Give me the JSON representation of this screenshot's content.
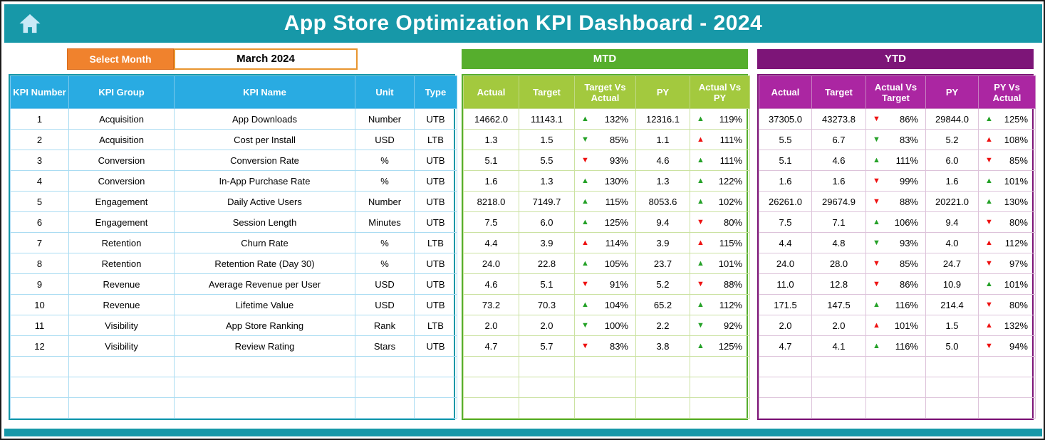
{
  "title": "App Store Optimization KPI Dashboard - 2024",
  "controls": {
    "select_month_label": "Select Month",
    "selected_month": "March 2024"
  },
  "kpi_table": {
    "headers": [
      "KPI Number",
      "KPI Group",
      "KPI Name",
      "Unit",
      "Type"
    ]
  },
  "mtd": {
    "title": "MTD",
    "headers": [
      "Actual",
      "Target",
      "Target Vs Actual",
      "PY",
      "Actual Vs PY"
    ]
  },
  "ytd": {
    "title": "YTD",
    "headers": [
      "Actual",
      "Target",
      "Actual Vs Target",
      "PY",
      "PY Vs Actual"
    ]
  },
  "rows": [
    {
      "kpi_number": "1",
      "group": "Acquisition",
      "name": "App Downloads",
      "unit": "Number",
      "type": "UTB",
      "mtd": {
        "actual": "14662.0",
        "target": "11143.1",
        "target_vs_actual": {
          "dir": "up",
          "good": true,
          "pct": "132%"
        },
        "py": "12316.1",
        "actual_vs_py": {
          "dir": "up",
          "good": true,
          "pct": "119%"
        }
      },
      "ytd": {
        "actual": "37305.0",
        "target": "43273.8",
        "actual_vs_target": {
          "dir": "down",
          "good": false,
          "pct": "86%"
        },
        "py": "29844.0",
        "py_vs_actual": {
          "dir": "up",
          "good": true,
          "pct": "125%"
        }
      }
    },
    {
      "kpi_number": "2",
      "group": "Acquisition",
      "name": "Cost per Install",
      "unit": "USD",
      "type": "LTB",
      "mtd": {
        "actual": "1.3",
        "target": "1.5",
        "target_vs_actual": {
          "dir": "down",
          "good": true,
          "pct": "85%"
        },
        "py": "1.1",
        "actual_vs_py": {
          "dir": "up",
          "good": false,
          "pct": "111%"
        }
      },
      "ytd": {
        "actual": "5.5",
        "target": "6.7",
        "actual_vs_target": {
          "dir": "down",
          "good": true,
          "pct": "83%"
        },
        "py": "5.2",
        "py_vs_actual": {
          "dir": "up",
          "good": false,
          "pct": "108%"
        }
      }
    },
    {
      "kpi_number": "3",
      "group": "Conversion",
      "name": "Conversion Rate",
      "unit": "%",
      "type": "UTB",
      "mtd": {
        "actual": "5.1",
        "target": "5.5",
        "target_vs_actual": {
          "dir": "down",
          "good": false,
          "pct": "93%"
        },
        "py": "4.6",
        "actual_vs_py": {
          "dir": "up",
          "good": true,
          "pct": "111%"
        }
      },
      "ytd": {
        "actual": "5.1",
        "target": "4.6",
        "actual_vs_target": {
          "dir": "up",
          "good": true,
          "pct": "111%"
        },
        "py": "6.0",
        "py_vs_actual": {
          "dir": "down",
          "good": false,
          "pct": "85%"
        }
      }
    },
    {
      "kpi_number": "4",
      "group": "Conversion",
      "name": "In-App Purchase Rate",
      "unit": "%",
      "type": "UTB",
      "mtd": {
        "actual": "1.6",
        "target": "1.3",
        "target_vs_actual": {
          "dir": "up",
          "good": true,
          "pct": "130%"
        },
        "py": "1.3",
        "actual_vs_py": {
          "dir": "up",
          "good": true,
          "pct": "122%"
        }
      },
      "ytd": {
        "actual": "1.6",
        "target": "1.6",
        "actual_vs_target": {
          "dir": "down",
          "good": false,
          "pct": "99%"
        },
        "py": "1.6",
        "py_vs_actual": {
          "dir": "up",
          "good": true,
          "pct": "101%"
        }
      }
    },
    {
      "kpi_number": "5",
      "group": "Engagement",
      "name": "Daily Active Users",
      "unit": "Number",
      "type": "UTB",
      "mtd": {
        "actual": "8218.0",
        "target": "7149.7",
        "target_vs_actual": {
          "dir": "up",
          "good": true,
          "pct": "115%"
        },
        "py": "8053.6",
        "actual_vs_py": {
          "dir": "up",
          "good": true,
          "pct": "102%"
        }
      },
      "ytd": {
        "actual": "26261.0",
        "target": "29674.9",
        "actual_vs_target": {
          "dir": "down",
          "good": false,
          "pct": "88%"
        },
        "py": "20221.0",
        "py_vs_actual": {
          "dir": "up",
          "good": true,
          "pct": "130%"
        }
      }
    },
    {
      "kpi_number": "6",
      "group": "Engagement",
      "name": "Session Length",
      "unit": "Minutes",
      "type": "UTB",
      "mtd": {
        "actual": "7.5",
        "target": "6.0",
        "target_vs_actual": {
          "dir": "up",
          "good": true,
          "pct": "125%"
        },
        "py": "9.4",
        "actual_vs_py": {
          "dir": "down",
          "good": false,
          "pct": "80%"
        }
      },
      "ytd": {
        "actual": "7.5",
        "target": "7.1",
        "actual_vs_target": {
          "dir": "up",
          "good": true,
          "pct": "106%"
        },
        "py": "9.4",
        "py_vs_actual": {
          "dir": "down",
          "good": false,
          "pct": "80%"
        }
      }
    },
    {
      "kpi_number": "7",
      "group": "Retention",
      "name": "Churn Rate",
      "unit": "%",
      "type": "LTB",
      "mtd": {
        "actual": "4.4",
        "target": "3.9",
        "target_vs_actual": {
          "dir": "up",
          "good": false,
          "pct": "114%"
        },
        "py": "3.9",
        "actual_vs_py": {
          "dir": "up",
          "good": false,
          "pct": "115%"
        }
      },
      "ytd": {
        "actual": "4.4",
        "target": "4.8",
        "actual_vs_target": {
          "dir": "down",
          "good": true,
          "pct": "93%"
        },
        "py": "4.0",
        "py_vs_actual": {
          "dir": "up",
          "good": false,
          "pct": "112%"
        }
      }
    },
    {
      "kpi_number": "8",
      "group": "Retention",
      "name": "Retention Rate (Day 30)",
      "unit": "%",
      "type": "UTB",
      "mtd": {
        "actual": "24.0",
        "target": "22.8",
        "target_vs_actual": {
          "dir": "up",
          "good": true,
          "pct": "105%"
        },
        "py": "23.7",
        "actual_vs_py": {
          "dir": "up",
          "good": true,
          "pct": "101%"
        }
      },
      "ytd": {
        "actual": "24.0",
        "target": "28.0",
        "actual_vs_target": {
          "dir": "down",
          "good": false,
          "pct": "85%"
        },
        "py": "24.7",
        "py_vs_actual": {
          "dir": "down",
          "good": false,
          "pct": "97%"
        }
      }
    },
    {
      "kpi_number": "9",
      "group": "Revenue",
      "name": "Average Revenue per User",
      "unit": "USD",
      "type": "UTB",
      "mtd": {
        "actual": "4.6",
        "target": "5.1",
        "target_vs_actual": {
          "dir": "down",
          "good": false,
          "pct": "91%"
        },
        "py": "5.2",
        "actual_vs_py": {
          "dir": "down",
          "good": false,
          "pct": "88%"
        }
      },
      "ytd": {
        "actual": "11.0",
        "target": "12.8",
        "actual_vs_target": {
          "dir": "down",
          "good": false,
          "pct": "86%"
        },
        "py": "10.9",
        "py_vs_actual": {
          "dir": "up",
          "good": true,
          "pct": "101%"
        }
      }
    },
    {
      "kpi_number": "10",
      "group": "Revenue",
      "name": "Lifetime Value",
      "unit": "USD",
      "type": "UTB",
      "mtd": {
        "actual": "73.2",
        "target": "70.3",
        "target_vs_actual": {
          "dir": "up",
          "good": true,
          "pct": "104%"
        },
        "py": "65.2",
        "actual_vs_py": {
          "dir": "up",
          "good": true,
          "pct": "112%"
        }
      },
      "ytd": {
        "actual": "171.5",
        "target": "147.5",
        "actual_vs_target": {
          "dir": "up",
          "good": true,
          "pct": "116%"
        },
        "py": "214.4",
        "py_vs_actual": {
          "dir": "down",
          "good": false,
          "pct": "80%"
        }
      }
    },
    {
      "kpi_number": "11",
      "group": "Visibility",
      "name": "App Store Ranking",
      "unit": "Rank",
      "type": "LTB",
      "mtd": {
        "actual": "2.0",
        "target": "2.0",
        "target_vs_actual": {
          "dir": "down",
          "good": true,
          "pct": "100%"
        },
        "py": "2.2",
        "actual_vs_py": {
          "dir": "down",
          "good": true,
          "pct": "92%"
        }
      },
      "ytd": {
        "actual": "2.0",
        "target": "2.0",
        "actual_vs_target": {
          "dir": "up",
          "good": false,
          "pct": "101%"
        },
        "py": "1.5",
        "py_vs_actual": {
          "dir": "up",
          "good": false,
          "pct": "132%"
        }
      }
    },
    {
      "kpi_number": "12",
      "group": "Visibility",
      "name": "Review Rating",
      "unit": "Stars",
      "type": "UTB",
      "mtd": {
        "actual": "4.7",
        "target": "5.7",
        "target_vs_actual": {
          "dir": "down",
          "good": false,
          "pct": "83%"
        },
        "py": "3.8",
        "actual_vs_py": {
          "dir": "up",
          "good": true,
          "pct": "125%"
        }
      },
      "ytd": {
        "actual": "4.7",
        "target": "4.1",
        "actual_vs_target": {
          "dir": "up",
          "good": true,
          "pct": "116%"
        },
        "py": "5.0",
        "py_vs_actual": {
          "dir": "down",
          "good": false,
          "pct": "94%"
        }
      }
    }
  ],
  "empty_rows": 3,
  "colors": {
    "teal": "#1798A8",
    "orange": "#F0822D",
    "orange_border": "#E8952F",
    "blue": "#29ABE2",
    "green": "#56AE2D",
    "green_light": "#A3C93E",
    "purple": "#7D1578",
    "magenta": "#AB26A2",
    "good": "#24A127",
    "bad": "#EE1111"
  }
}
